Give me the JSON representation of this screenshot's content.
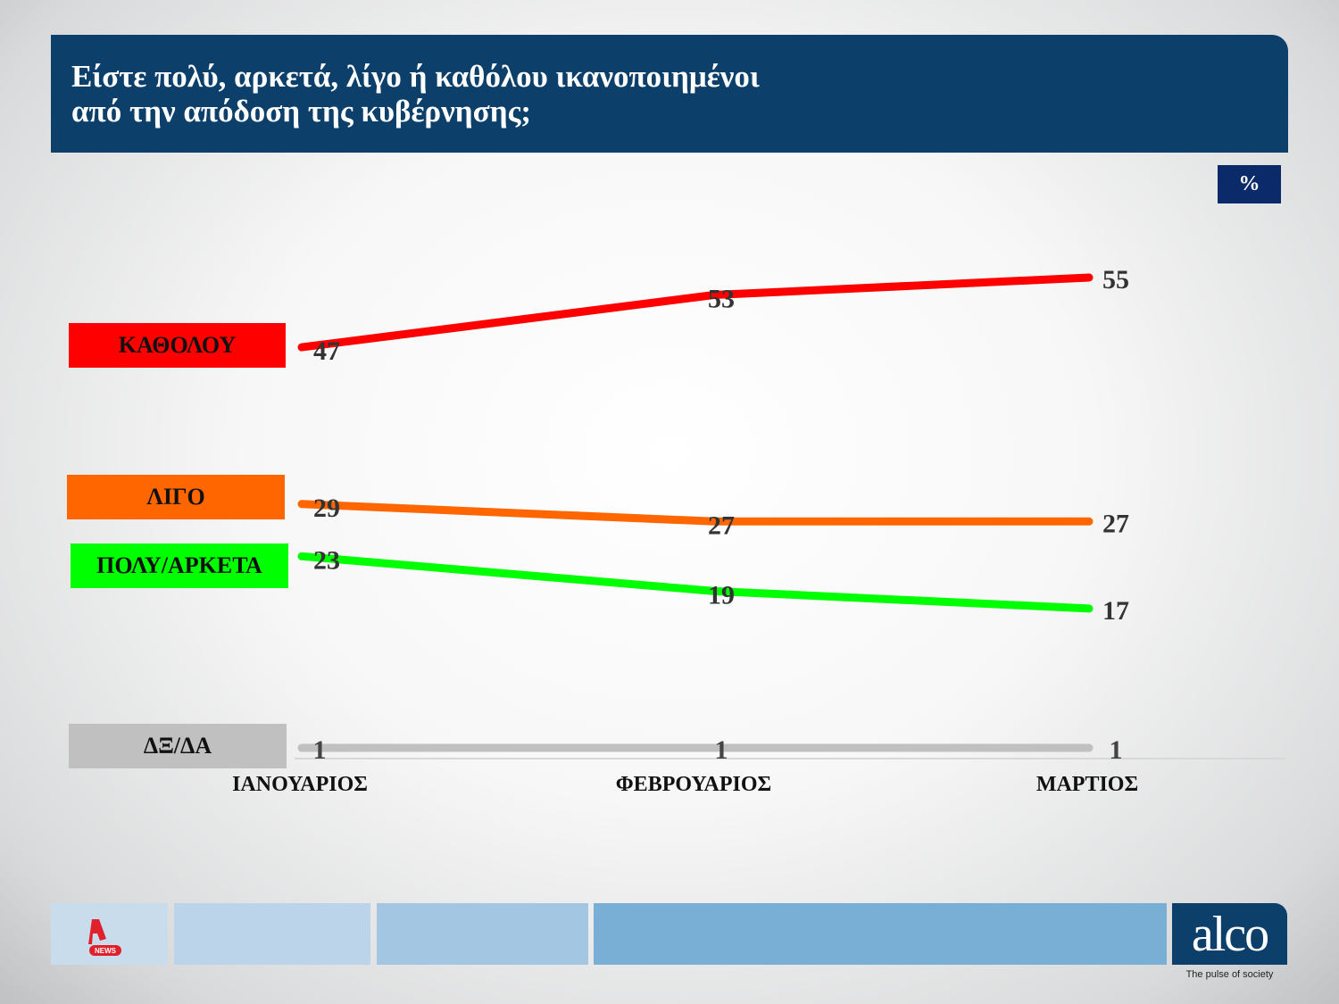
{
  "header": {
    "title": "Είστε πολύ, αρκετά, λίγο ή καθόλου ικανοποιημένοι\nαπό την απόδοση της κυβέρνησης;"
  },
  "unit_label": "%",
  "chart_data": {
    "type": "line",
    "title": "Είστε πολύ, αρκετά, λίγο ή καθόλου ικανοποιημένοι από την απόδοση της κυβέρνησης;",
    "categories": [
      "ΙΑΝΟΥΑΡΙΟΣ",
      "ΦΕΒΡΟΥΑΡΙΟΣ",
      "ΜΑΡΤΙΟΣ"
    ],
    "ylabel": "%",
    "ylim": [
      0,
      56
    ],
    "grid": false,
    "legend_placement": "left",
    "series": [
      {
        "name": "ΚΑΘΟΛΟΥ",
        "color": "#ff0000",
        "values": [
          47,
          53,
          55
        ]
      },
      {
        "name": "ΛΙΓΟ",
        "color": "#ff6600",
        "values": [
          29,
          27,
          27
        ]
      },
      {
        "name": "ΠΟΛΥ/ΑΡΚΕΤΑ",
        "color": "#00ff00",
        "values": [
          23,
          19,
          17
        ]
      },
      {
        "name": "ΔΞ/ΔΑ",
        "color": "#c0c0c0",
        "values": [
          1,
          1,
          1
        ]
      }
    ]
  },
  "footer": {
    "logo_left": "NEWS",
    "logo_right": "alco",
    "tagline": "The pulse of society"
  }
}
